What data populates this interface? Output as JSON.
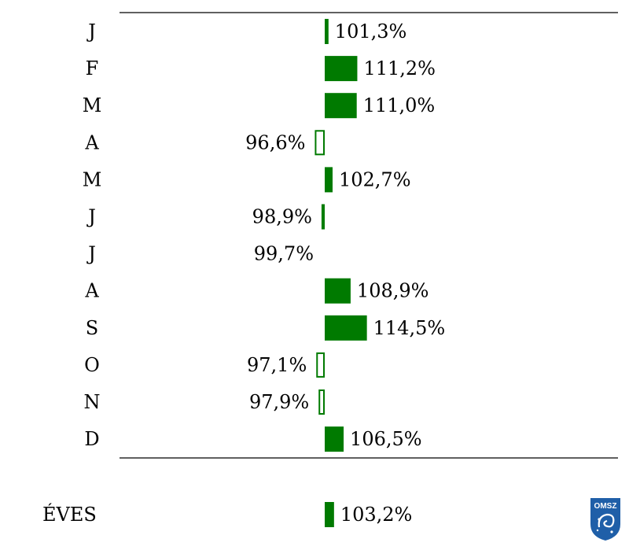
{
  "chart_data": {
    "type": "bar",
    "orientation": "horizontal",
    "baseline": 100,
    "categories": [
      "J",
      "F",
      "M",
      "A",
      "M",
      "J",
      "J",
      "A",
      "S",
      "O",
      "N",
      "D"
    ],
    "values": [
      101.3,
      111.2,
      111.0,
      96.6,
      102.7,
      98.9,
      99.7,
      108.9,
      114.5,
      97.1,
      97.9,
      106.5
    ],
    "value_labels": [
      "101,3%",
      "111,2%",
      "111,0%",
      "96,6%",
      "102,7%",
      "98,9%",
      "99,7%",
      "108,9%",
      "114,5%",
      "97,1%",
      "97,9%",
      "106,5%"
    ],
    "annual": {
      "label": "ÉVES",
      "value": 103.2,
      "value_label": "103,2%"
    },
    "colors": {
      "bar": "#007a00",
      "rule": "#000000"
    },
    "style": "bars above baseline filled, bars below baseline outlined"
  },
  "logo": {
    "text": "OMSZ",
    "color": "#1f5fa8"
  }
}
